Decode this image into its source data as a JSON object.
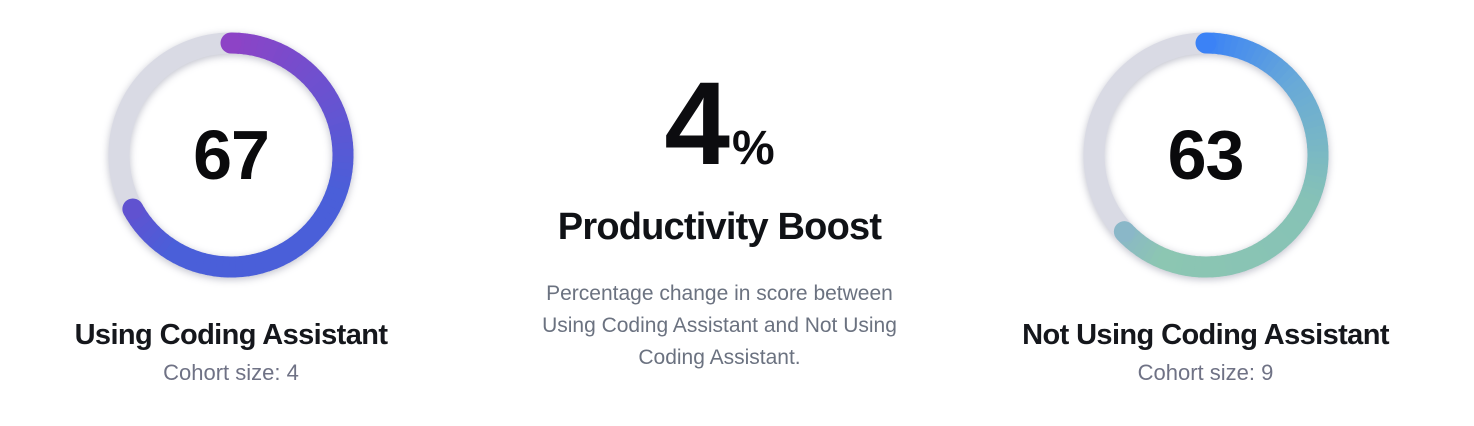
{
  "page": {
    "background": "#ffffff"
  },
  "chart_data": [
    {
      "type": "donut",
      "title": "Using Coding Assistant",
      "subtitle": "Cohort size: 4",
      "value": 67,
      "max": 100,
      "cohort_size": 4,
      "arc_gradient": [
        "#8d43c6",
        "#4a5fd9"
      ],
      "track_color": "#d9dae4"
    },
    {
      "type": "kpi",
      "title": "Productivity Boost",
      "value": 4,
      "unit": "%",
      "description": "Percentage change in score between Using Coding Assistant and Not Using Coding Assistant."
    },
    {
      "type": "donut",
      "title": "Not Using Coding Assistant",
      "subtitle": "Cohort size: 9",
      "value": 63,
      "max": 100,
      "cohort_size": 9,
      "arc_gradient": [
        "#3b82f6",
        "#8cc6b2"
      ],
      "track_color": "#d9dae4"
    }
  ],
  "gauges": {
    "left": {
      "value": "67",
      "label": "Using Coding Assistant",
      "cohort": "Cohort size: 4",
      "percent": 67,
      "track_color": "#d9dae4",
      "stops": [
        {
          "at": 0,
          "color": "#8d43c6"
        },
        {
          "at": 0.45,
          "color": "#4a5fd9"
        },
        {
          "at": 0.88,
          "color": "#4a5fd9"
        },
        {
          "at": 1,
          "color": "#6052d0"
        }
      ]
    },
    "right": {
      "value": "63",
      "label": "Not Using Coding Assistant",
      "cohort": "Cohort size: 9",
      "percent": 63,
      "track_color": "#d9dae4",
      "stops": [
        {
          "at": 0,
          "color": "#3b82f6"
        },
        {
          "at": 0.22,
          "color": "#68a9d8"
        },
        {
          "at": 0.5,
          "color": "#86c2b6"
        },
        {
          "at": 0.9,
          "color": "#8cc6b2"
        },
        {
          "at": 1,
          "color": "#8ab7c8"
        }
      ]
    }
  },
  "kpi": {
    "value": "4",
    "unit": "%",
    "title": "Productivity Boost",
    "description_lines": [
      "Percentage change in score between",
      "Using Coding Assistant and Not Using",
      "Coding Assistant."
    ]
  }
}
